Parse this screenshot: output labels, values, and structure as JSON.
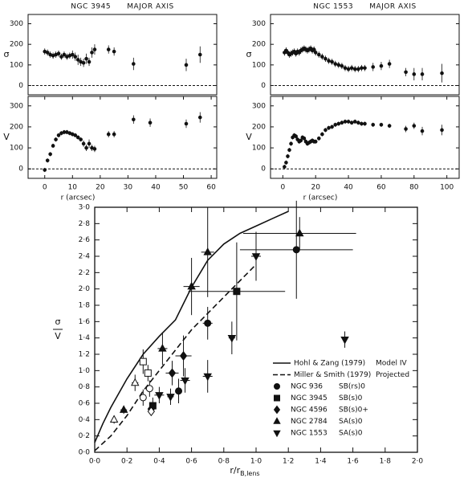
{
  "chart_data": [
    {
      "type": "scatter",
      "title": "NGC 3945      MAJOR AXIS",
      "ylabel": "σ",
      "xlim": [
        -6,
        62
      ],
      "ylim": [
        -45,
        345
      ],
      "yticks": [
        0,
        100,
        200,
        300
      ],
      "zero_line": true,
      "color": "#111111",
      "x": [
        0,
        1,
        2,
        3,
        4,
        5,
        6,
        7,
        8,
        9,
        10,
        11,
        12,
        13,
        14,
        15,
        16,
        17,
        18,
        23,
        25,
        32,
        51,
        56
      ],
      "values": [
        165,
        160,
        150,
        145,
        150,
        155,
        140,
        150,
        140,
        145,
        150,
        140,
        125,
        115,
        110,
        130,
        115,
        160,
        175,
        175,
        165,
        105,
        100,
        150
      ],
      "errors": [
        15,
        15,
        15,
        15,
        15,
        15,
        15,
        15,
        15,
        15,
        20,
        20,
        25,
        20,
        20,
        25,
        20,
        25,
        25,
        20,
        20,
        30,
        30,
        40
      ]
    },
    {
      "type": "scatter",
      "ylabel": "V",
      "xlabel": "r (arcsec)",
      "xlim": [
        -6,
        62
      ],
      "ylim": [
        -45,
        345
      ],
      "yticks": [
        0,
        100,
        200,
        300
      ],
      "xticks": [
        0,
        10,
        20,
        30,
        40,
        50,
        60
      ],
      "zero_line": true,
      "color": "#111111",
      "x": [
        0,
        1,
        2,
        3,
        4,
        5,
        6,
        7,
        8,
        9,
        10,
        11,
        12,
        13,
        14,
        15,
        16,
        17,
        18,
        23,
        25,
        32,
        38,
        51,
        56
      ],
      "values": [
        -5,
        40,
        70,
        110,
        140,
        160,
        170,
        175,
        175,
        170,
        165,
        160,
        150,
        140,
        120,
        100,
        120,
        100,
        95,
        165,
        165,
        235,
        220,
        215,
        245
      ],
      "errors": [
        10,
        10,
        10,
        10,
        10,
        10,
        10,
        10,
        10,
        10,
        10,
        10,
        10,
        10,
        15,
        15,
        20,
        15,
        15,
        15,
        15,
        20,
        20,
        20,
        25
      ]
    },
    {
      "type": "scatter",
      "title": "NGC 1553      MAJOR AXIS",
      "ylabel": "σ",
      "xlim": [
        -7.5,
        107.5
      ],
      "ylim": [
        -45,
        345
      ],
      "yticks": [
        0,
        100,
        200,
        300
      ],
      "zero_line": true,
      "color": "#111111",
      "x": [
        1,
        2,
        3,
        4,
        5,
        6,
        7,
        8,
        9,
        10,
        11,
        12,
        13,
        14,
        15,
        16,
        17,
        18,
        19,
        20,
        22,
        24,
        26,
        28,
        30,
        32,
        34,
        36,
        38,
        40,
        42,
        44,
        46,
        48,
        50,
        55,
        60,
        65,
        75,
        80,
        85,
        97
      ],
      "values": [
        160,
        170,
        160,
        150,
        155,
        160,
        165,
        155,
        165,
        160,
        170,
        175,
        180,
        175,
        170,
        175,
        180,
        170,
        175,
        160,
        150,
        140,
        130,
        120,
        115,
        105,
        100,
        95,
        85,
        80,
        85,
        80,
        80,
        85,
        85,
        90,
        95,
        105,
        65,
        55,
        55,
        60
      ],
      "errors": [
        15,
        15,
        15,
        15,
        15,
        15,
        15,
        15,
        15,
        15,
        15,
        15,
        15,
        15,
        15,
        15,
        15,
        15,
        15,
        15,
        15,
        15,
        15,
        15,
        15,
        15,
        15,
        15,
        15,
        15,
        15,
        15,
        15,
        15,
        15,
        20,
        20,
        20,
        20,
        30,
        30,
        45
      ]
    },
    {
      "type": "scatter",
      "ylabel": "V",
      "xlabel": "r (arcsec)",
      "xlim": [
        -7.5,
        107.5
      ],
      "ylim": [
        -45,
        345
      ],
      "yticks": [
        0,
        100,
        200,
        300
      ],
      "xticks": [
        0,
        20,
        40,
        60,
        80,
        100
      ],
      "zero_line": true,
      "color": "#111111",
      "x": [
        1,
        2,
        3,
        4,
        5,
        6,
        7,
        8,
        9,
        10,
        11,
        12,
        13,
        14,
        15,
        16,
        17,
        18,
        19,
        20,
        22,
        24,
        26,
        28,
        30,
        32,
        34,
        36,
        38,
        40,
        42,
        44,
        46,
        48,
        50,
        55,
        60,
        65,
        75,
        80,
        85,
        97
      ],
      "values": [
        10,
        30,
        60,
        90,
        120,
        150,
        160,
        155,
        140,
        130,
        135,
        150,
        145,
        130,
        120,
        125,
        130,
        135,
        130,
        130,
        145,
        165,
        185,
        195,
        200,
        210,
        215,
        220,
        225,
        225,
        220,
        225,
        220,
        215,
        215,
        210,
        210,
        205,
        190,
        205,
        180,
        185
      ],
      "errors": [
        10,
        10,
        10,
        10,
        10,
        10,
        10,
        10,
        10,
        10,
        10,
        10,
        10,
        10,
        10,
        10,
        10,
        10,
        10,
        10,
        10,
        10,
        10,
        10,
        10,
        10,
        10,
        10,
        10,
        10,
        10,
        10,
        10,
        10,
        10,
        10,
        10,
        10,
        15,
        15,
        20,
        25
      ]
    },
    {
      "type": "scatter",
      "ylabel_numerator": "σ",
      "ylabel_denominator": "V",
      "xlabel": "r/r",
      "xlabel_sub": "B,lens",
      "legend": "lower-right",
      "color": "#111111",
      "xlim": [
        0,
        2.0
      ],
      "ylim": [
        0,
        3.0
      ],
      "xticks": [
        {
          "value": 0,
          "label": "0·0"
        },
        {
          "value": 0.2,
          "label": "0·2"
        },
        {
          "value": 0.4,
          "label": "0·4"
        },
        {
          "value": 0.6,
          "label": "0·6"
        },
        {
          "value": 0.8,
          "label": "0·8"
        },
        {
          "value": 1.0,
          "label": "1·0"
        },
        {
          "value": 1.2,
          "label": "1·2"
        },
        {
          "value": 1.4,
          "label": "1·4"
        },
        {
          "value": 1.6,
          "label": "1·6"
        },
        {
          "value": 1.8,
          "label": "1·8"
        },
        {
          "value": 2.0,
          "label": "2·0"
        }
      ],
      "yticks": [
        {
          "value": 0,
          "label": "0·0"
        },
        {
          "value": 0.2,
          "label": "0·2"
        },
        {
          "value": 0.4,
          "label": "0·4"
        },
        {
          "value": 0.6,
          "label": "0·6"
        },
        {
          "value": 0.8,
          "label": "0·8"
        },
        {
          "value": 1.0,
          "label": "1·0"
        },
        {
          "value": 1.2,
          "label": "1·2"
        },
        {
          "value": 1.4,
          "label": "1·4"
        },
        {
          "value": 1.6,
          "label": "1·6"
        },
        {
          "value": 1.8,
          "label": "1·8"
        },
        {
          "value": 2.0,
          "label": "2·0"
        },
        {
          "value": 2.2,
          "label": "2·2"
        },
        {
          "value": 2.4,
          "label": "2·4"
        },
        {
          "value": 2.6,
          "label": "2·6"
        },
        {
          "value": 2.8,
          "label": "2·8"
        },
        {
          "value": 3.0,
          "label": "3·0"
        }
      ],
      "series": [
        {
          "name": "Hohl & Zang (1979)",
          "note": "Model IV",
          "type": "line",
          "dashed": false,
          "x": [
            0,
            0.05,
            0.1,
            0.2,
            0.3,
            0.4,
            0.5,
            0.6,
            0.7,
            0.8,
            0.9,
            1.0,
            1.1,
            1.2
          ],
          "values": [
            0.12,
            0.35,
            0.55,
            0.9,
            1.2,
            1.42,
            1.62,
            2.02,
            2.35,
            2.55,
            2.68,
            2.77,
            2.86,
            2.95
          ]
        },
        {
          "name": "Miller & Smith (1979)",
          "note": "Projected",
          "type": "line",
          "dashed": true,
          "x": [
            0,
            0.1,
            0.2,
            0.3,
            0.4,
            0.5,
            0.6,
            0.7,
            0.8,
            0.9,
            1.0
          ],
          "values": [
            0.02,
            0.2,
            0.45,
            0.75,
            1.0,
            1.25,
            1.5,
            1.7,
            1.9,
            2.1,
            2.3
          ]
        },
        {
          "name": "NGC 936",
          "class": "SB(rs)0",
          "marker": "circle",
          "filled": true,
          "x": [
            0.7,
            0.52,
            1.25
          ],
          "values": [
            1.58,
            0.75,
            2.48
          ],
          "xerr": [
            0.03,
            0.02,
            0.35
          ],
          "yerr": [
            0.2,
            0.15,
            0.6
          ]
        },
        {
          "name": "NGC 3945",
          "class": "SB(s)0",
          "marker": "square",
          "filled": true,
          "x": [
            0.88,
            0.36
          ],
          "values": [
            1.97,
            0.57
          ],
          "xerr": [
            0.3,
            0.02
          ],
          "yerr": [
            0.6,
            0.1
          ]
        },
        {
          "name": "NGC 4596",
          "class": "SB(s)0+",
          "marker": "diamond",
          "filled": true,
          "x": [
            0.48,
            0.55,
            0.35
          ],
          "values": [
            0.97,
            1.18,
            0.53
          ],
          "xerr": [
            0.04,
            0.05,
            0.02
          ],
          "yerr": [
            0.15,
            0.25,
            0.08
          ]
        },
        {
          "name": "NGC 2784",
          "class": "SA(s)0",
          "marker": "triangle-up",
          "filled": true,
          "x": [
            0.6,
            0.7,
            1.27,
            0.42,
            0.18
          ],
          "values": [
            2.03,
            2.45,
            2.68,
            1.27,
            0.52
          ],
          "xerr": [
            0.05,
            0.04,
            0.35,
            0.03,
            0.02
          ],
          "yerr": [
            0.35,
            0.55,
            0.2,
            0.2,
            0.05
          ]
        },
        {
          "name": "NGC 1553",
          "class": "SA(s)0",
          "marker": "triangle-down",
          "filled": true,
          "x": [
            0.4,
            0.47,
            0.56,
            0.7,
            0.85,
            1.0,
            1.55
          ],
          "values": [
            0.7,
            0.68,
            0.88,
            0.93,
            1.4,
            2.4,
            1.38
          ],
          "xerr": [
            0.03,
            0.02,
            0.03,
            0.03,
            0.02,
            0.03,
            0
          ],
          "yerr": [
            0.1,
            0.1,
            0.15,
            0.2,
            0.2,
            0.3,
            0.1
          ]
        },
        {
          "marker": "square",
          "filled": false,
          "x": [
            0.3,
            0.33
          ],
          "values": [
            1.11,
            0.97
          ],
          "xerr": [
            0.02,
            0.02
          ],
          "yerr": [
            0.15,
            0.1
          ]
        },
        {
          "marker": "circle",
          "filled": false,
          "x": [
            0.3,
            0.34
          ],
          "values": [
            0.67,
            0.78
          ],
          "xerr": [
            0.02,
            0.02
          ],
          "yerr": [
            0.1,
            0.1
          ]
        },
        {
          "marker": "triangle-up",
          "filled": false,
          "x": [
            0.12,
            0.25
          ],
          "values": [
            0.4,
            0.85
          ],
          "xerr": [
            0.01,
            0.02
          ],
          "yerr": [
            0.05,
            0.1
          ]
        },
        {
          "marker": "diamond",
          "filled": false,
          "x": [
            0.35
          ],
          "values": [
            0.5
          ],
          "xerr": [
            0.02
          ],
          "yerr": [
            0.05
          ]
        }
      ]
    }
  ]
}
